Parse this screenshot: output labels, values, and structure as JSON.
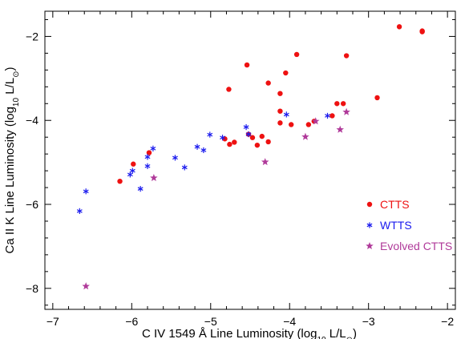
{
  "chart_data": {
    "type": "scatter",
    "xlabel_main": "C IV 1549 Å Line Luminosity (log",
    "xlabel_sub": "10",
    "xlabel_end": " L/L",
    "xlabel_sun_sub": "⊙",
    "xlabel_close": ")",
    "ylabel_main": "Ca II K Line Luminosity (log",
    "ylabel_sub": "10",
    "ylabel_end": " L/L",
    "ylabel_sun_sub": "⊙",
    "ylabel_close": ")",
    "xlim": [
      -7.1,
      -1.9
    ],
    "ylim": [
      -8.5,
      -1.4
    ],
    "xticks": [
      -7,
      -6,
      -5,
      -4,
      -3,
      -2
    ],
    "yticks": [
      -8,
      -6,
      -4,
      -2
    ],
    "x_tick_labels": [
      "−7",
      "−6",
      "−5",
      "−4",
      "−3",
      "−2"
    ],
    "y_tick_labels": [
      "−8",
      "−6",
      "−4",
      "−2"
    ],
    "legend_position": "right",
    "series": [
      {
        "name": "CTTS",
        "marker": "circle",
        "color": "#ee1111",
        "points": [
          [
            -6.15,
            -5.45
          ],
          [
            -5.98,
            -5.04
          ],
          [
            -5.78,
            -4.77
          ],
          [
            -4.82,
            -4.44
          ],
          [
            -4.76,
            -4.57
          ],
          [
            -4.7,
            -4.52
          ],
          [
            -4.77,
            -3.26
          ],
          [
            -4.52,
            -4.33
          ],
          [
            -4.47,
            -4.41
          ],
          [
            -4.41,
            -4.59
          ],
          [
            -4.35,
            -4.38
          ],
          [
            -4.27,
            -4.51
          ],
          [
            -4.27,
            -3.11
          ],
          [
            -4.12,
            -3.78
          ],
          [
            -4.12,
            -4.06
          ],
          [
            -4.12,
            -3.36
          ],
          [
            -4.05,
            -2.87
          ],
          [
            -3.98,
            -4.1
          ],
          [
            -3.91,
            -2.43
          ],
          [
            -3.76,
            -4.1
          ],
          [
            -3.69,
            -4.02
          ],
          [
            -3.46,
            -3.89
          ],
          [
            -3.4,
            -3.6
          ],
          [
            -3.32,
            -3.6
          ],
          [
            -3.28,
            -2.46
          ],
          [
            -4.54,
            -2.68
          ],
          [
            -2.89,
            -3.46
          ],
          [
            -2.61,
            -1.77
          ],
          [
            -2.32,
            -1.87
          ],
          [
            -2.32,
            -1.89
          ]
        ]
      },
      {
        "name": "WTTS",
        "marker": "asterisk",
        "color": "#1a1aee",
        "points": [
          [
            -6.66,
            -6.16
          ],
          [
            -6.58,
            -5.69
          ],
          [
            -6.02,
            -5.29
          ],
          [
            -5.99,
            -5.2
          ],
          [
            -5.89,
            -5.63
          ],
          [
            -5.8,
            -5.09
          ],
          [
            -5.8,
            -4.87
          ],
          [
            -5.73,
            -4.67
          ],
          [
            -5.45,
            -4.89
          ],
          [
            -5.33,
            -5.12
          ],
          [
            -5.17,
            -4.63
          ],
          [
            -5.09,
            -4.71
          ],
          [
            -5.01,
            -4.34
          ],
          [
            -4.85,
            -4.41
          ],
          [
            -4.55,
            -4.16
          ],
          [
            -4.52,
            -4.33
          ],
          [
            -4.04,
            -3.86
          ],
          [
            -3.52,
            -3.89
          ]
        ]
      },
      {
        "name": "Evolved CTTS",
        "marker": "star",
        "color": "#b03a9a",
        "points": [
          [
            -6.58,
            -7.95
          ],
          [
            -5.72,
            -5.37
          ],
          [
            -4.31,
            -4.99
          ],
          [
            -3.8,
            -4.39
          ],
          [
            -3.67,
            -4.02
          ],
          [
            -3.36,
            -4.22
          ],
          [
            -3.28,
            -3.8
          ]
        ]
      }
    ]
  }
}
